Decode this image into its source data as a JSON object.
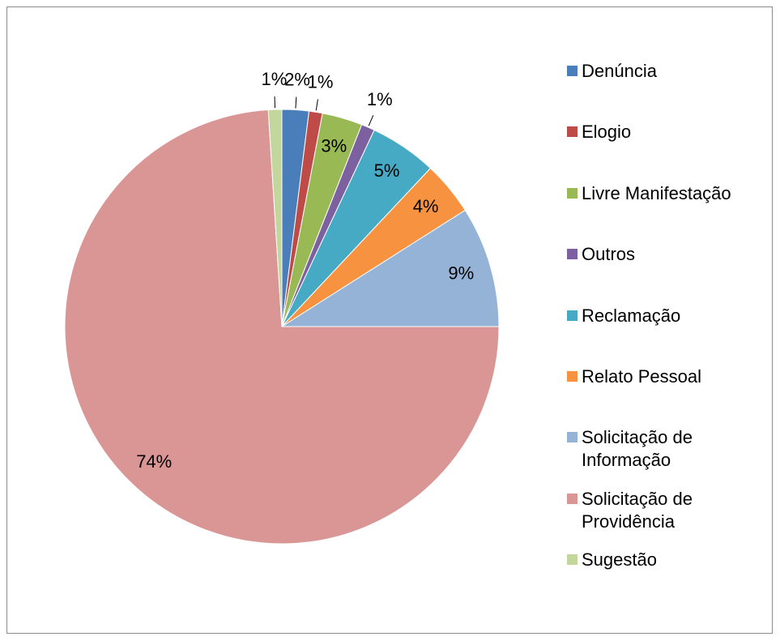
{
  "chart_data": {
    "type": "pie",
    "categories": [
      "Denúncia",
      "Elogio",
      "Livre Manifestação",
      "Outros",
      "Reclamação",
      "Relato Pessoal",
      "Solicitação de Informação",
      "Solicitação de Providência",
      "Sugestão"
    ],
    "values": [
      2,
      1,
      3,
      1,
      5,
      4,
      9,
      74,
      1
    ],
    "value_labels": [
      "2%",
      "1%",
      "3%",
      "1%",
      "5%",
      "4%",
      "9%",
      "74%",
      "1%"
    ],
    "colors": [
      "#4a7ebb",
      "#be4b48",
      "#98b954",
      "#7d60a0",
      "#46aac5",
      "#f69240",
      "#95b3d7",
      "#d99694",
      "#c3d69b"
    ],
    "legend": "right"
  }
}
